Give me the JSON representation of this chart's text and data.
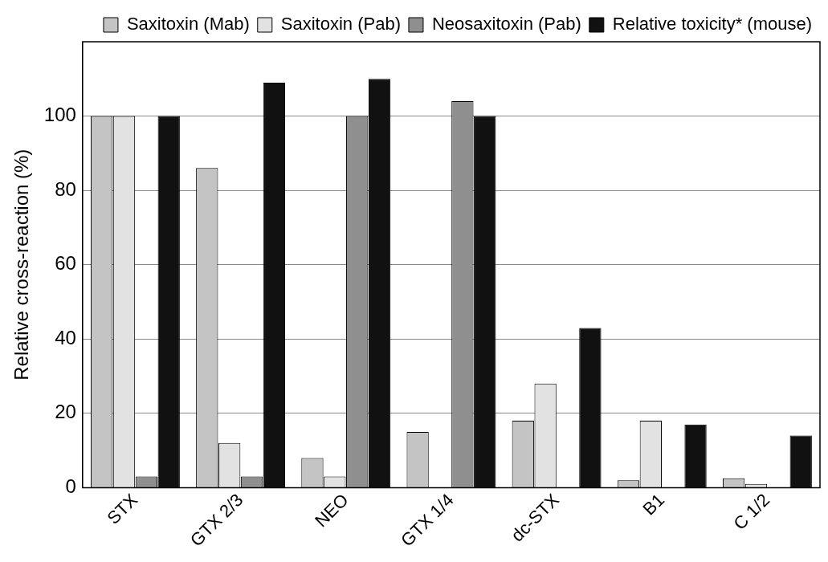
{
  "chart_data": {
    "type": "bar",
    "ylabel": "Relative cross-reaction (%)",
    "categories": [
      "STX",
      "GTX 2/3",
      "NEO",
      "GTX 1/4",
      "dc-STX",
      "B1",
      "C 1/2"
    ],
    "series": [
      {
        "name": "Saxitoxin (Mab)",
        "color": "#c4c4c4",
        "values": [
          100,
          86,
          8,
          15,
          18,
          2,
          2.5
        ]
      },
      {
        "name": "Saxitoxin (Pab)",
        "color": "#e2e2e2",
        "values": [
          100,
          12,
          3,
          null,
          28,
          18,
          1
        ]
      },
      {
        "name": "Neosaxitoxin (Pab)",
        "color": "#8f8f8f",
        "values": [
          3,
          3,
          100,
          104,
          null,
          null,
          null
        ]
      },
      {
        "name": "Relative toxicity* (mouse)",
        "color": "#111111",
        "values": [
          100,
          109,
          110,
          100,
          43,
          17,
          14
        ]
      }
    ],
    "ylim": [
      0,
      120
    ],
    "yticks": [
      0,
      20,
      40,
      60,
      80,
      100
    ],
    "grid": "y",
    "legend": "top"
  }
}
